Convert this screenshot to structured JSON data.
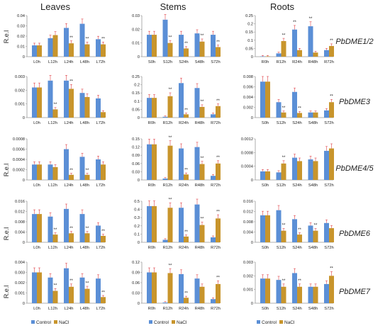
{
  "colors": {
    "control": "#5b8fd6",
    "nacl": "#c8952c",
    "sig": "#7b2d8e",
    "axis": "#999999",
    "err": "#e0474c"
  },
  "columns": [
    {
      "id": "leaves",
      "title": "Leaves"
    },
    {
      "id": "stems",
      "title": "Stems"
    },
    {
      "id": "roots",
      "title": "Roots"
    }
  ],
  "gene_labels": [
    "PbDME1/2",
    "PbDME3",
    "PbDME4/5",
    "PbDME6",
    "PbDME7"
  ],
  "ylabel": "R.e.l",
  "legend": {
    "control": "Control",
    "nacl": "NaCl"
  },
  "chart_data": [
    {
      "type": "bar",
      "row": 0,
      "col": 0,
      "categories": [
        "L0h",
        "L12h",
        "L24h",
        "L48h",
        "L72h"
      ],
      "ylim": [
        0,
        0.04
      ],
      "yticks": [
        "0",
        "0.01",
        "0.02",
        "0.03",
        "0.04"
      ],
      "series": [
        {
          "name": "Control",
          "values": [
            0.011,
            0.018,
            0.028,
            0.032,
            0.017
          ]
        },
        {
          "name": "NaCl",
          "values": [
            0.011,
            0.021,
            0.013,
            0.012,
            0.012
          ]
        }
      ],
      "sig": [
        "",
        "",
        "nacl",
        "nacl",
        "nacl"
      ]
    },
    {
      "type": "bar",
      "row": 0,
      "col": 1,
      "categories": [
        "S0h",
        "S12h",
        "S24h",
        "S48h",
        "S72h"
      ],
      "ylim": [
        0,
        0.03
      ],
      "yticks": [
        "0",
        "0.01",
        "0.02",
        "0.03"
      ],
      "series": [
        {
          "name": "Control",
          "values": [
            0.016,
            0.027,
            0.016,
            0.017,
            0.016
          ]
        },
        {
          "name": "NaCl",
          "values": [
            0.016,
            0.01,
            0.006,
            0.011,
            0.007
          ]
        }
      ],
      "sig": [
        "",
        "nacl",
        "nacl",
        "nacl",
        "nacl"
      ]
    },
    {
      "type": "bar",
      "row": 0,
      "col": 2,
      "categories": [
        "R0h",
        "R12h",
        "R24h",
        "R48h",
        "R72h"
      ],
      "ylim": [
        0,
        0.25
      ],
      "yticks": [
        "0",
        "0.05",
        "0.1",
        "0.15",
        "0.2",
        "0.25"
      ],
      "series": [
        {
          "name": "Control",
          "values": [
            0.002,
            0.02,
            0.165,
            0.185,
            0.04
          ]
        },
        {
          "name": "NaCl",
          "values": [
            0.002,
            0.095,
            0.04,
            0.025,
            0.065
          ]
        }
      ],
      "sig": [
        "",
        "nacl",
        "control",
        "control",
        "nacl"
      ]
    },
    {
      "type": "bar",
      "row": 1,
      "col": 0,
      "categories": [
        "L0h",
        "L12h",
        "L24h",
        "L48h",
        "L72h"
      ],
      "ylim": [
        0,
        0.003
      ],
      "yticks": [
        "0",
        "0.001",
        "0.002",
        "0.003"
      ],
      "series": [
        {
          "name": "Control",
          "values": [
            0.0022,
            0.0027,
            0.0027,
            0.0018,
            0.0014
          ]
        },
        {
          "name": "NaCl",
          "values": [
            0.0022,
            0.0006,
            0.0021,
            0.0015,
            0.0004
          ]
        }
      ],
      "sig": [
        "",
        "nacl",
        "nacl",
        "",
        ""
      ]
    },
    {
      "type": "bar",
      "row": 1,
      "col": 1,
      "categories": [
        "R0h",
        "R12h",
        "R24h",
        "R48h",
        "R72h"
      ],
      "ylim": [
        0,
        0.25
      ],
      "yticks": [
        "0",
        "0.05",
        "0.1",
        "0.15",
        "0.2",
        "0.25"
      ],
      "series": [
        {
          "name": "Control",
          "values": [
            0.12,
            0.005,
            0.21,
            0.18,
            0.02
          ]
        },
        {
          "name": "NaCl",
          "values": [
            0.12,
            0.13,
            0.02,
            0.065,
            0.07
          ]
        }
      ],
      "sig": [
        "",
        "nacl",
        "nacl",
        "nacl",
        "nacl"
      ]
    },
    {
      "type": "bar",
      "row": 1,
      "col": 2,
      "categories": [
        "S0h",
        "S12h",
        "S24h",
        "S48h",
        "S72h"
      ],
      "ylim": [
        0,
        0.008
      ],
      "yticks": [
        "0",
        "0.002",
        "0.004",
        "0.006",
        "0.008"
      ],
      "series": [
        {
          "name": "Control",
          "values": [
            0.007,
            0.003,
            0.005,
            0.001,
            0.0014
          ]
        },
        {
          "name": "NaCl",
          "values": [
            0.007,
            0.001,
            0.0009,
            0.001,
            0.003
          ]
        }
      ],
      "sig": [
        "",
        "nacl",
        "nacl",
        "",
        "nacl"
      ]
    },
    {
      "type": "bar",
      "row": 2,
      "col": 0,
      "categories": [
        "L0h",
        "L12h",
        "L24h",
        "L48h",
        "L72h"
      ],
      "ylim": [
        0,
        0.0008
      ],
      "yticks": [
        "0",
        "0.0002",
        "0.0004",
        "0.0006",
        "0.0008"
      ],
      "series": [
        {
          "name": "Control",
          "values": [
            0.0003,
            0.0003,
            0.0006,
            0.00045,
            0.0004
          ]
        },
        {
          "name": "NaCl",
          "values": [
            0.0003,
            0.00025,
            0.0001,
            0.0001,
            0.0003
          ]
        }
      ],
      "sig": [
        "",
        "",
        "nacl",
        "nacl",
        ""
      ]
    },
    {
      "type": "bar",
      "row": 2,
      "col": 1,
      "categories": [
        "R0h",
        "R12h",
        "R24h",
        "R48h",
        "R72h"
      ],
      "ylim": [
        0,
        0.15
      ],
      "yticks": [
        "0",
        "0.03",
        "0.06",
        "0.09",
        "0.12",
        "0.15"
      ],
      "series": [
        {
          "name": "Control",
          "values": [
            0.13,
            0.005,
            0.115,
            0.12,
            0.015
          ]
        },
        {
          "name": "NaCl",
          "values": [
            0.13,
            0.125,
            0.02,
            0.058,
            0.06
          ]
        }
      ],
      "sig": [
        "",
        "nacl",
        "nacl",
        "nacl",
        "nacl"
      ]
    },
    {
      "type": "bar",
      "row": 2,
      "col": 2,
      "categories": [
        "S0h",
        "S12h",
        "S24h",
        "S48h",
        "S72h"
      ],
      "ylim": [
        0,
        0.0012
      ],
      "yticks": [
        "0",
        "0.0004",
        "0.0008",
        "0.0012"
      ],
      "series": [
        {
          "name": "Control",
          "values": [
            0.00025,
            0.00022,
            0.00065,
            0.0006,
            0.00085
          ]
        },
        {
          "name": "NaCl",
          "values": [
            0.00025,
            0.00048,
            0.00055,
            0.00055,
            0.00092
          ]
        }
      ],
      "sig": [
        "",
        "nacl",
        "",
        "",
        ""
      ]
    },
    {
      "type": "bar",
      "row": 3,
      "col": 0,
      "categories": [
        "L0h",
        "L12h",
        "L24h",
        "L48h",
        "L72h"
      ],
      "ylim": [
        0,
        0.016
      ],
      "yticks": [
        "0",
        "0.004",
        "0.008",
        "0.012",
        "0.016"
      ],
      "series": [
        {
          "name": "Control",
          "values": [
            0.011,
            0.01,
            0.013,
            0.011,
            0.0065
          ]
        },
        {
          "name": "NaCl",
          "values": [
            0.011,
            0.003,
            0.0035,
            0.0035,
            0.0025
          ]
        }
      ],
      "sig": [
        "",
        "nacl",
        "nacl",
        "nacl",
        "nacl"
      ]
    },
    {
      "type": "bar",
      "row": 3,
      "col": 1,
      "categories": [
        "R0h",
        "R12h",
        "R24h",
        "R48h",
        "R72h"
      ],
      "ylim": [
        0,
        0.5
      ],
      "yticks": [
        "0",
        "0.1",
        "0.2",
        "0.3",
        "0.4",
        "0.5"
      ],
      "series": [
        {
          "name": "Control",
          "values": [
            0.44,
            0.03,
            0.42,
            0.46,
            0.06
          ]
        },
        {
          "name": "NaCl",
          "values": [
            0.44,
            0.42,
            0.07,
            0.21,
            0.29
          ]
        }
      ],
      "sig": [
        "",
        "nacl",
        "nacl",
        "nacl",
        "nacl"
      ]
    },
    {
      "type": "bar",
      "row": 3,
      "col": 2,
      "categories": [
        "S0h",
        "S12h",
        "S24h",
        "S48h",
        "S72h"
      ],
      "ylim": [
        0,
        0.016
      ],
      "yticks": [
        "0",
        "0.004",
        "0.008",
        "0.012",
        "0.016"
      ],
      "series": [
        {
          "name": "Control",
          "values": [
            0.0105,
            0.0125,
            0.009,
            0.0065,
            0.0075
          ]
        },
        {
          "name": "NaCl",
          "values": [
            0.0105,
            0.0045,
            0.003,
            0.0045,
            0.0055
          ]
        }
      ],
      "sig": [
        "",
        "nacl",
        "nacl",
        "nacl",
        ""
      ]
    },
    {
      "type": "bar",
      "row": 4,
      "col": 0,
      "categories": [
        "L0h",
        "L12h",
        "L24h",
        "L48h",
        "L72h"
      ],
      "ylim": [
        0,
        0.004
      ],
      "yticks": [
        "0",
        "0.001",
        "0.002",
        "0.003",
        "0.004"
      ],
      "series": [
        {
          "name": "Control",
          "values": [
            0.003,
            0.0025,
            0.0034,
            0.0025,
            0.0024
          ]
        },
        {
          "name": "NaCl",
          "values": [
            0.003,
            0.0012,
            0.0016,
            0.0014,
            0.0006
          ]
        }
      ],
      "sig": [
        "",
        "nacl",
        "nacl",
        "nacl",
        "nacl"
      ]
    },
    {
      "type": "bar",
      "row": 4,
      "col": 1,
      "categories": [
        "R0h",
        "R12h",
        "R24h",
        "R48h",
        "R72h"
      ],
      "ylim": [
        0,
        0.12
      ],
      "yticks": [
        "0",
        "0.03",
        "0.06",
        "0.09",
        "0.12"
      ],
      "series": [
        {
          "name": "Control",
          "values": [
            0.09,
            0.002,
            0.085,
            0.072,
            0.012
          ]
        },
        {
          "name": "NaCl",
          "values": [
            0.09,
            0.088,
            0.016,
            0.048,
            0.056
          ]
        }
      ],
      "sig": [
        "",
        "nacl",
        "nacl",
        "",
        "nacl"
      ]
    },
    {
      "type": "bar",
      "row": 4,
      "col": 2,
      "categories": [
        "S0h",
        "S12h",
        "S24h",
        "S48h",
        "S72h"
      ],
      "ylim": [
        0,
        0.003
      ],
      "yticks": [
        "0",
        "0.001",
        "0.002",
        "0.003"
      ],
      "series": [
        {
          "name": "Control",
          "values": [
            0.0018,
            0.0017,
            0.0022,
            0.0012,
            0.0014
          ]
        },
        {
          "name": "NaCl",
          "values": [
            0.0018,
            0.0012,
            0.0012,
            0.0012,
            0.002
          ]
        }
      ],
      "sig": [
        "",
        "nacl",
        "nacl",
        "",
        "nacl"
      ]
    }
  ]
}
